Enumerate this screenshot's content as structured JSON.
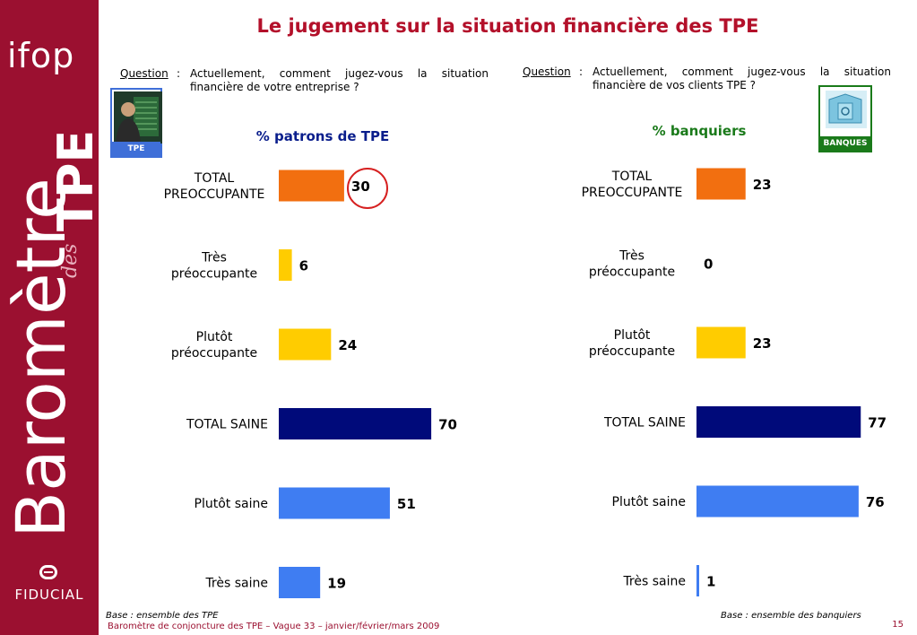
{
  "sidebar": {
    "logo_text": "ifop",
    "vertical_main": "Baromètre",
    "vertical_des": "des",
    "vertical_tpe": "TPE",
    "brand": "FIDUCIAL"
  },
  "title": "Le jugement sur la situation financière des TPE",
  "left": {
    "question_label": "Question",
    "question_text": "Actuellement, comment jugez-vous la situation financière de votre entreprise ?",
    "badge_label": "TPE",
    "subtitle": "% patrons de TPE",
    "base": "Base : ensemble des TPE"
  },
  "right": {
    "question_label": "Question",
    "question_text": "Actuellement, comment jugez-vous la situation financière de vos clients TPE ?",
    "badge_label": "BANQUES",
    "subtitle": "% banquiers",
    "base": "Base : ensemble des banquiers"
  },
  "colors": {
    "brand": "#9b1030",
    "title": "#b3102a",
    "total_preoccupante": "#f26f10",
    "preoccupante": "#ffcc00",
    "total_saine": "#000a7a",
    "saine": "#3f7df2",
    "left_subtitle": "#0a1e8c",
    "right_subtitle": "#1a7a1a",
    "highlight": "#d62020"
  },
  "chart_data": [
    {
      "type": "bar",
      "orientation": "horizontal",
      "subtitle": "% patrons de TPE",
      "categories": [
        "TOTAL PREOCCUPANTE",
        "Très préoccupante",
        "Plutôt préoccupante",
        "TOTAL SAINE",
        "Plutôt saine",
        "Très saine"
      ],
      "values": [
        30,
        6,
        24,
        70,
        51,
        19
      ],
      "bar_colors": [
        "#f26f10",
        "#ffcc00",
        "#ffcc00",
        "#000a7a",
        "#3f7df2",
        "#3f7df2"
      ],
      "highlighted": "TOTAL PREOCCUPANTE",
      "xlim": [
        0,
        100
      ]
    },
    {
      "type": "bar",
      "orientation": "horizontal",
      "subtitle": "% banquiers",
      "categories": [
        "TOTAL PREOCCUPANTE",
        "Très préoccupante",
        "Plutôt préoccupante",
        "TOTAL SAINE",
        "Plutôt saine",
        "Très saine"
      ],
      "values": [
        23,
        0,
        23,
        77,
        76,
        1
      ],
      "bar_colors": [
        "#f26f10",
        "#ffcc00",
        "#ffcc00",
        "#000a7a",
        "#3f7df2",
        "#3f7df2"
      ],
      "xlim": [
        0,
        100
      ]
    }
  ],
  "footer": "Baromètre de conjoncture des TPE – Vague 33 – janvier/février/mars 2009",
  "page_number": "15"
}
